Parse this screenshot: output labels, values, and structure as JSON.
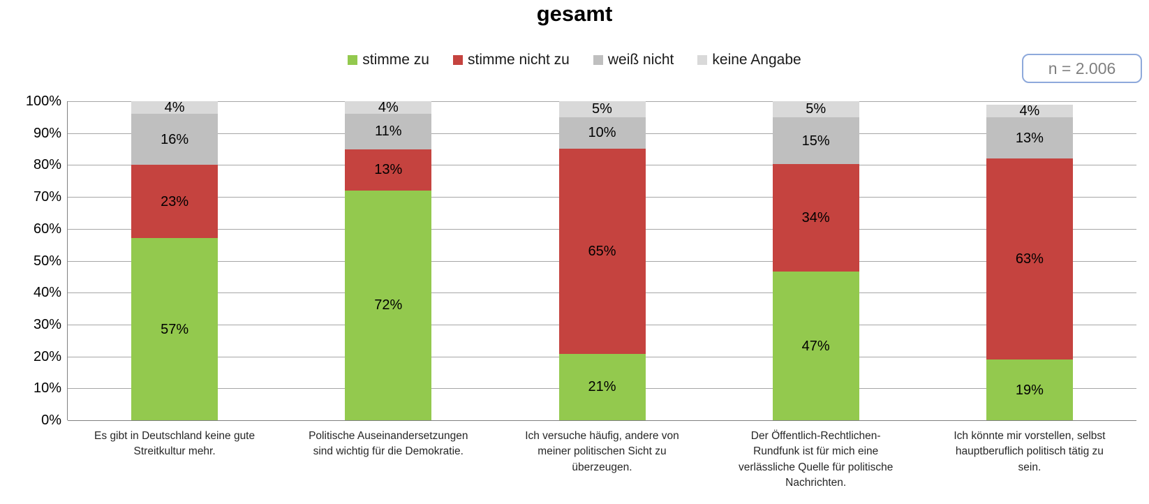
{
  "title": "gesamt",
  "sample_badge": {
    "label": "n = 2.006"
  },
  "colors": {
    "agree": "#93C94E",
    "disagree": "#C5433F",
    "dont_know": "#BFBFBF",
    "no_answer": "#D9D9D9",
    "gridline": "#A6A6A6",
    "axis": "#808080",
    "badge_border": "#8EA9DB",
    "badge_text": "#808080"
  },
  "chart_data": {
    "type": "bar",
    "stacked": true,
    "orientation": "vertical",
    "title": "gesamt",
    "xlabel": "",
    "ylabel": "",
    "ylim": [
      0,
      100
    ],
    "grid": true,
    "legend_position": "top",
    "y_ticks": [
      "0%",
      "10%",
      "20%",
      "30%",
      "40%",
      "50%",
      "60%",
      "70%",
      "80%",
      "90%",
      "100%"
    ],
    "categories": [
      "Es gibt in Deutschland keine gute Streitkultur mehr.",
      "Politische Auseinandersetzungen sind wichtig für die Demokratie.",
      "Ich versuche häufig, andere von meiner politischen Sicht zu überzeugen.",
      "Der Öffentlich-Rechtlichen-Rundfunk ist für mich eine verlässliche Quelle für politische Nachrichten.",
      "Ich könnte mir vorstellen, selbst hauptberuflich politisch tätig zu sein."
    ],
    "category_label_lines": [
      [
        "Es gibt in Deutschland keine gute",
        "Streitkultur mehr."
      ],
      [
        "Politische Auseinandersetzungen",
        "sind wichtig für die Demokratie."
      ],
      [
        "Ich versuche häufig, andere von",
        "meiner politischen Sicht zu",
        "überzeugen."
      ],
      [
        "Der Öffentlich-Rechtlichen-",
        "Rundfunk ist für mich eine",
        "verlässliche Quelle für politische",
        "Nachrichten."
      ],
      [
        "Ich könnte mir vorstellen, selbst",
        "hauptberuflich politisch tätig zu",
        "sein."
      ]
    ],
    "series": [
      {
        "name": "stimme zu",
        "color": "#93C94E",
        "values": [
          57,
          72,
          21,
          47,
          19
        ]
      },
      {
        "name": "stimme nicht zu",
        "color": "#C5433F",
        "values": [
          23,
          13,
          65,
          34,
          63
        ]
      },
      {
        "name": "weiß nicht",
        "color": "#BFBFBF",
        "values": [
          16,
          11,
          10,
          15,
          13
        ]
      },
      {
        "name": "keine Angabe",
        "color": "#D9D9D9",
        "values": [
          4,
          4,
          5,
          5,
          4
        ]
      }
    ]
  }
}
